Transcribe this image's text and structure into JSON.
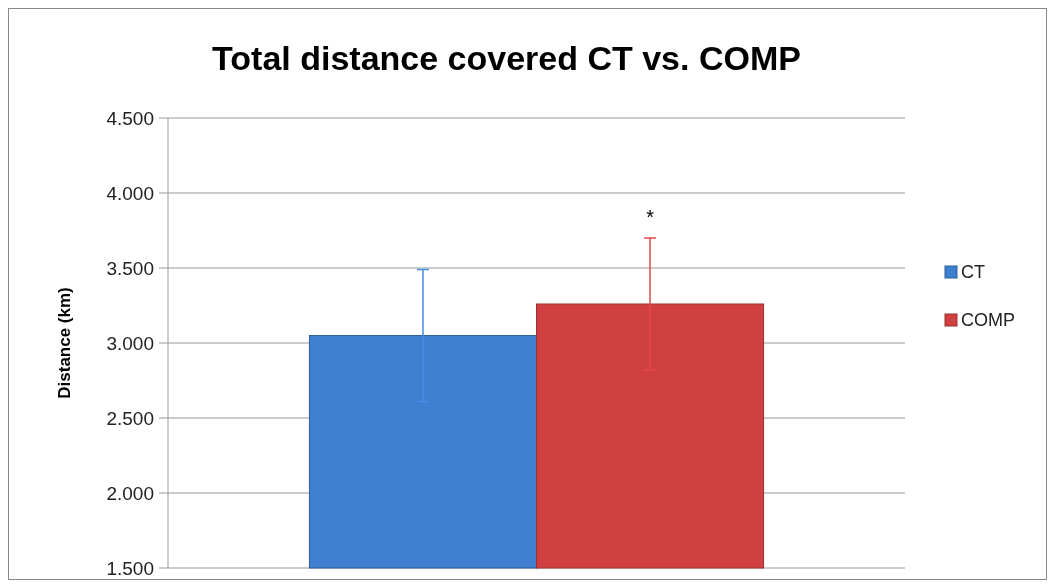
{
  "chart_data": {
    "type": "bar",
    "title": "Total distance covered CT vs. COMP",
    "ylabel": "Distance (km)",
    "categories": [
      null
    ],
    "series": [
      {
        "name": "CT",
        "color": "#3f7fd0",
        "values": [
          3.05
        ],
        "errors": [
          0.44
        ]
      },
      {
        "name": "COMP",
        "color": "#d04040",
        "values": [
          3.26
        ],
        "errors": [
          0.44
        ]
      }
    ],
    "ylim": [
      1.5,
      4.5
    ],
    "yticks": [
      {
        "value": 1.5,
        "label": "1.500"
      },
      {
        "value": 2,
        "label": "2.000"
      },
      {
        "value": 2.5,
        "label": "2.500"
      },
      {
        "value": 3,
        "label": "3.000"
      },
      {
        "value": 3.5,
        "label": "3.500"
      },
      {
        "value": 4,
        "label": "4.000"
      },
      {
        "value": 4.5,
        "label": "4.500"
      }
    ],
    "grid": "y",
    "legend": "right",
    "annotations": [
      "*"
    ]
  }
}
